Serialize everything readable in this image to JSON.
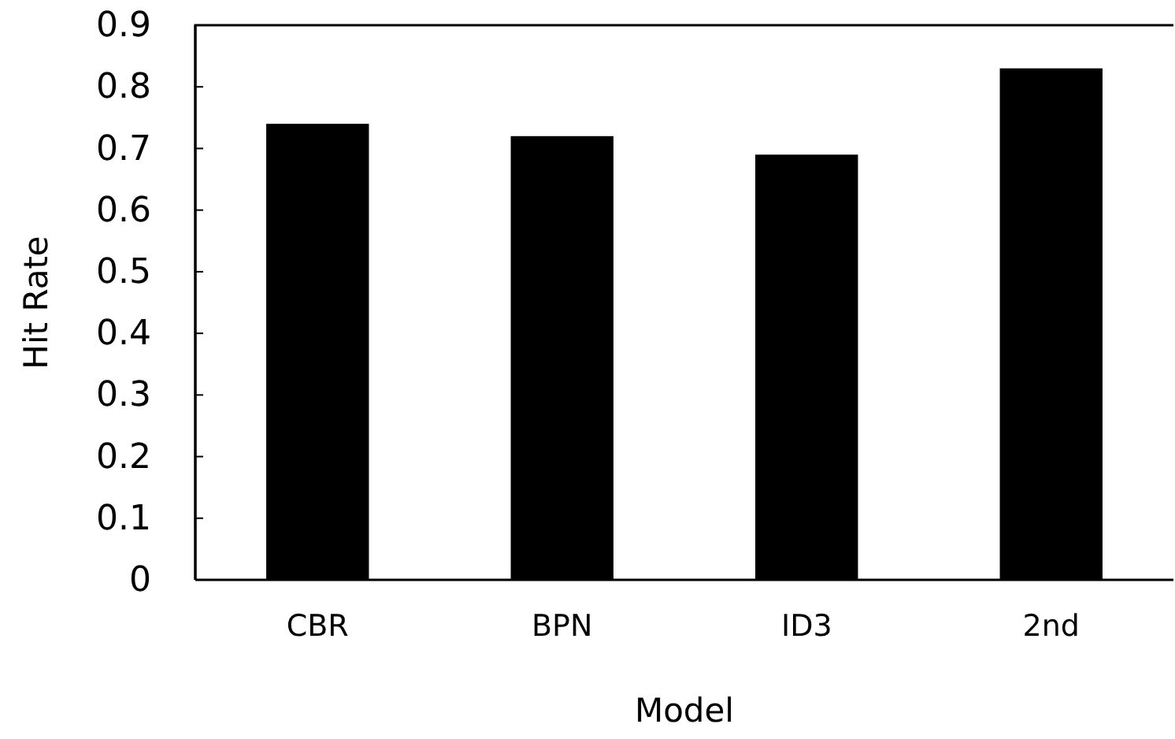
{
  "chart_data": {
    "type": "bar",
    "xlabel": "Model",
    "ylabel": "Hit Rate",
    "categories": [
      "CBR",
      "BPN",
      "ID3",
      "2nd"
    ],
    "values": [
      0.74,
      0.72,
      0.69,
      0.83
    ],
    "color": "#000000",
    "ylim": [
      0,
      0.9
    ],
    "yticks": [
      0,
      0.1,
      0.2,
      0.3,
      0.4,
      0.5,
      0.6,
      0.7,
      0.8,
      0.9
    ],
    "grid": false
  }
}
